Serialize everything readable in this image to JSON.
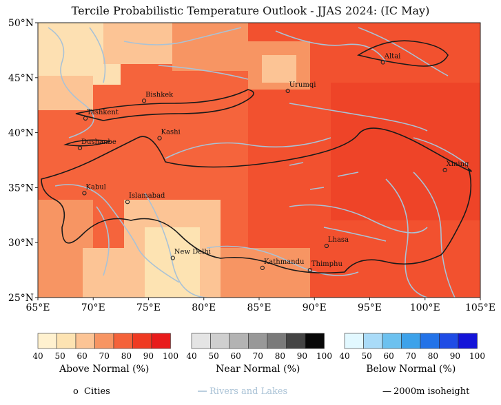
{
  "title": "Tercile Probabilistic Temperature Outlook - JJAS 2024: (IC  May)",
  "axes": {
    "x_ticks": [
      "65°E",
      "70°E",
      "75°E",
      "80°E",
      "85°E",
      "90°E",
      "95°E",
      "100°E",
      "105°E"
    ],
    "y_ticks": [
      "50°N",
      "45°N",
      "40°N",
      "35°N",
      "30°N",
      "25°N"
    ],
    "lon_range": [
      65,
      105
    ],
    "lat_range": [
      25,
      50
    ]
  },
  "cities": [
    {
      "name": "Altai",
      "lon": 96.2,
      "lat": 46.4
    },
    {
      "name": "Urumqi",
      "lon": 87.6,
      "lat": 43.8
    },
    {
      "name": "Bishkek",
      "lon": 74.6,
      "lat": 42.9
    },
    {
      "name": "Tashkent",
      "lon": 69.3,
      "lat": 41.3
    },
    {
      "name": "Kashi",
      "lon": 76.0,
      "lat": 39.5
    },
    {
      "name": "Dushanbe",
      "lon": 68.8,
      "lat": 38.6
    },
    {
      "name": "Xining",
      "lon": 101.8,
      "lat": 36.6
    },
    {
      "name": "Kabul",
      "lon": 69.2,
      "lat": 34.5
    },
    {
      "name": "Islamabad",
      "lon": 73.1,
      "lat": 33.7
    },
    {
      "name": "Lhasa",
      "lon": 91.1,
      "lat": 29.7
    },
    {
      "name": "New Delhi",
      "lon": 77.2,
      "lat": 28.6
    },
    {
      "name": "Kathmandu",
      "lon": 85.3,
      "lat": 27.7
    },
    {
      "name": "Thimphu",
      "lon": 89.6,
      "lat": 27.5
    }
  ],
  "legends": [
    {
      "title": "Above Normal (%)",
      "ticks": [
        "40",
        "50",
        "60",
        "70",
        "80",
        "90",
        "100"
      ],
      "colors": [
        "#fff1cf",
        "#fde3b2",
        "#fcc495",
        "#f79563",
        "#f4623a",
        "#ef3a22",
        "#e81b1b"
      ]
    },
    {
      "title": "Near Normal (%)",
      "ticks": [
        "40",
        "50",
        "60",
        "70",
        "80",
        "90",
        "100"
      ],
      "colors": [
        "#e4e4e4",
        "#cfcfcf",
        "#b3b3b3",
        "#989898",
        "#7a7a7a",
        "#444444",
        "#080808"
      ]
    },
    {
      "title": "Below Normal (%)",
      "ticks": [
        "40",
        "50",
        "60",
        "70",
        "80",
        "90",
        "100"
      ],
      "colors": [
        "#e2f8ff",
        "#a9dbf8",
        "#6cc1ef",
        "#3da2ea",
        "#2373e8",
        "#1f4ce5",
        "#1414d8"
      ]
    }
  ],
  "key": {
    "cities_label": "Cities",
    "rivers_label": "Rivers and Lakes",
    "isoheight_label": "2000m isoheight",
    "cities_marker": "o",
    "isoheight_marker": "—"
  },
  "colors": {
    "rivers": "#a9c2d6",
    "isoheight": "#1a1a1a",
    "base_field": "#f4623a"
  }
}
